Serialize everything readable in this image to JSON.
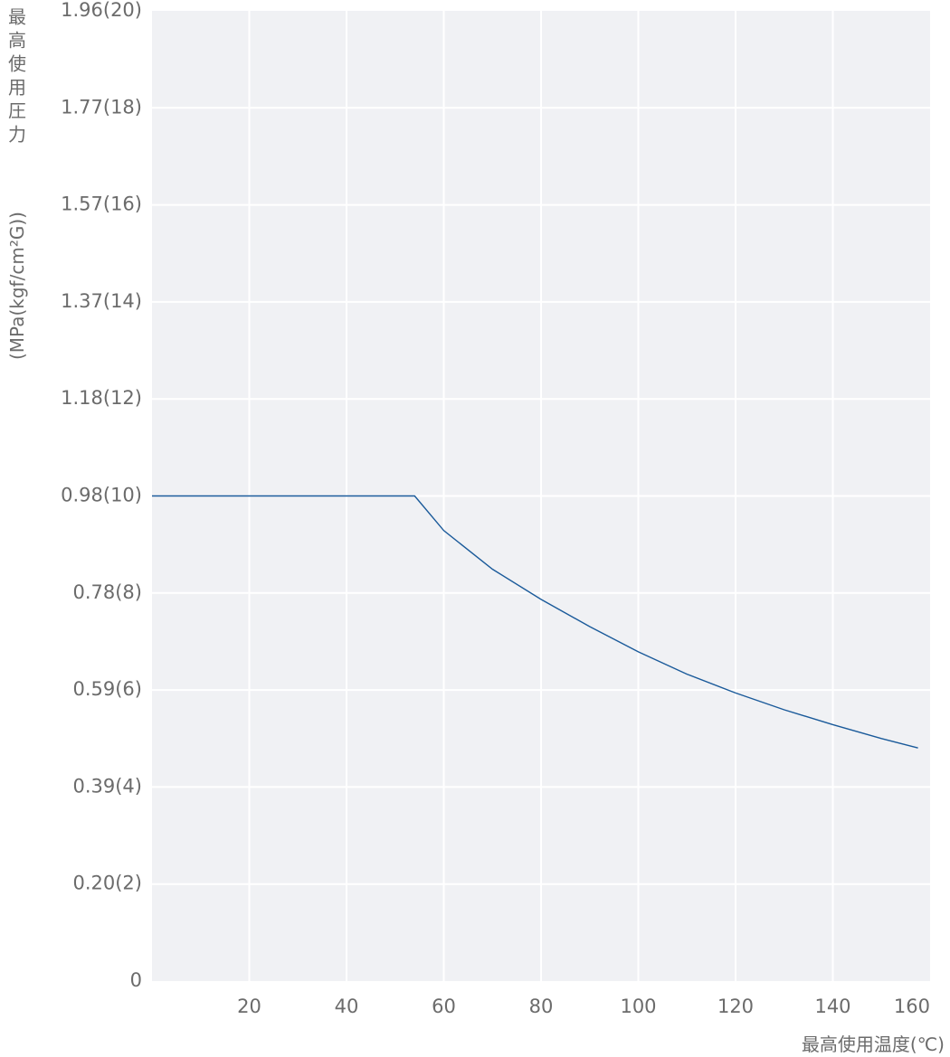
{
  "chart_data": {
    "type": "line",
    "title": "",
    "xlabel": "最高使用温度(℃)",
    "ylabel": "最高使用圧力(MPa(kgf/cm²G))",
    "ylabel_lines": [
      "最高使用圧力",
      "(MPa(kgf/cm²G))"
    ],
    "xlim": [
      0,
      160
    ],
    "ylim": [
      0,
      1.96
    ],
    "x_ticks": [
      "20",
      "40",
      "60",
      "80",
      "100",
      "120",
      "140",
      "160"
    ],
    "y_ticks": [
      "0",
      "0.20(2)",
      "0.39(4)",
      "0.59(6)",
      "0.78(8)",
      "0.98(10)",
      "1.18(12)",
      "1.37(14)",
      "1.57(16)",
      "1.77(18)",
      "1.96(20)"
    ],
    "y_tick_values": [
      0,
      0.2,
      0.39,
      0.59,
      0.78,
      0.98,
      1.18,
      1.37,
      1.57,
      1.77,
      1.96
    ],
    "grid": true,
    "series": [
      {
        "x": [
          0,
          54,
          60,
          70,
          80,
          90,
          100,
          110,
          120,
          130,
          140,
          150,
          157.5
        ],
        "y": [
          0.98,
          0.98,
          0.91,
          0.832,
          0.771,
          0.716,
          0.665,
          0.62,
          0.582,
          0.548,
          0.518,
          0.49,
          0.471
        ]
      }
    ],
    "colors": {
      "plot_background": "#f0f1f4",
      "grid": "#ffffff",
      "line": "#1a5a9a"
    }
  }
}
